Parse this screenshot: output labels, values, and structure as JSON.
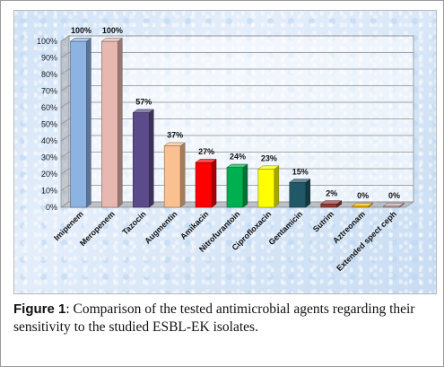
{
  "figure": {
    "label": "Figure",
    "number": "1",
    "caption": ": Comparison of the tested antimicrobial agents regarding their sensitivity to the studied ESBL-EK isolates."
  },
  "chart_data": {
    "type": "bar",
    "style": "3d-column",
    "title": "",
    "xlabel": "",
    "ylabel": "",
    "ylim": [
      0,
      100
    ],
    "yticks": [
      "0%",
      "10%",
      "20%",
      "30%",
      "40%",
      "50%",
      "60%",
      "70%",
      "80%",
      "90%",
      "100%"
    ],
    "grid": true,
    "categories": [
      "Imipenem",
      "Meropenem",
      "Tazocin",
      "Augmentin",
      "Amikacin",
      "Nitrofurantoin",
      "Ciprofloxacin",
      "Gentamicin",
      "Sutrim",
      "Aztreonam",
      "Extended spect ceph"
    ],
    "values": [
      100,
      100,
      57,
      37,
      27,
      24,
      23,
      15,
      2,
      0,
      0
    ],
    "value_labels": [
      "100%",
      "100%",
      "57%",
      "37%",
      "27%",
      "24%",
      "23%",
      "15%",
      "2%",
      "0%",
      "0%"
    ],
    "colors": [
      "#8db3e2",
      "#e6b8b0",
      "#5b4b8a",
      "#fac08f",
      "#ff0000",
      "#00b050",
      "#ffff00",
      "#215867",
      "#953735",
      "#ffc000",
      "#c9a9a9"
    ]
  }
}
